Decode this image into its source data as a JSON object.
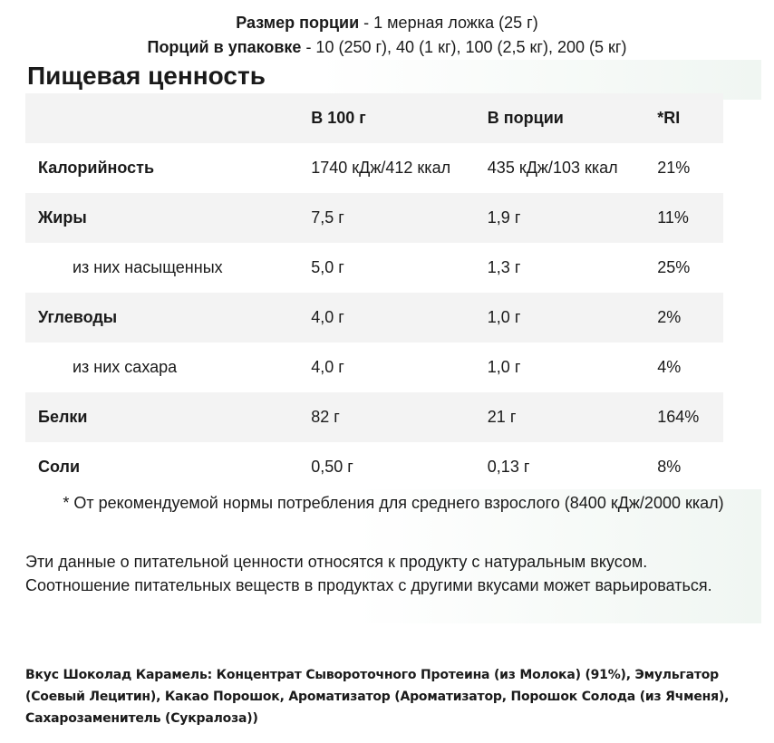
{
  "serving": {
    "size_label": "Размер порции",
    "size_value": " - 1 мерная ложка (25 г)",
    "per_pack_label": "Порций в упаковке",
    "per_pack_value": " - 10 (250 г), 40 (1 кг), 100 (2,5 кг), 200 (5 кг)"
  },
  "title": "Пищевая ценность",
  "table": {
    "headers": [
      "",
      "В 100 г",
      "В порции",
      "*RI"
    ],
    "rows": [
      {
        "label": "Калорийность",
        "per100": "1740 кДж/412 ккал",
        "perServing": "435 кДж/103 ккал",
        "ri": "21%"
      },
      {
        "label": "Жиры",
        "per100": "7,5 г",
        "perServing": "1,9 г",
        "ri": "11%"
      },
      {
        "label": "из них насыщенных",
        "per100": "5,0 г",
        "perServing": "1,3 г",
        "ri": "25%"
      },
      {
        "label": "Углеводы",
        "per100": "4,0 г",
        "perServing": "1,0 г",
        "ri": "2%"
      },
      {
        "label": "из них сахара",
        "per100": "4,0 г",
        "perServing": "1,0 г",
        "ri": "4%"
      },
      {
        "label": "Белки",
        "per100": "82 г",
        "perServing": "21 г",
        "ri": "164%"
      },
      {
        "label": "Соли",
        "per100": "0,50 г",
        "perServing": "0,13 г",
        "ri": "8%"
      }
    ]
  },
  "footnote": "* От рекомендуемой нормы потребления для среднего взрослого (8400 кДж/2000 ккал)",
  "disclaimer": "Эти данные о питательной ценности относятся к продукту с натуральным вкусом. Соотношение питательных веществ в продуктах с другими вкусами может варьироваться.",
  "ingredients": "Вкус Шоколад Карамель: Концентрат Сывороточного Протеина (из Молока) (91%), Эмульгатор (Соевый Лецитин), Какао Порошок, Ароматизатор (Ароматизатор, Порошок Солода (из Ячменя), Сахарозаменитель (Сукралоза))"
}
